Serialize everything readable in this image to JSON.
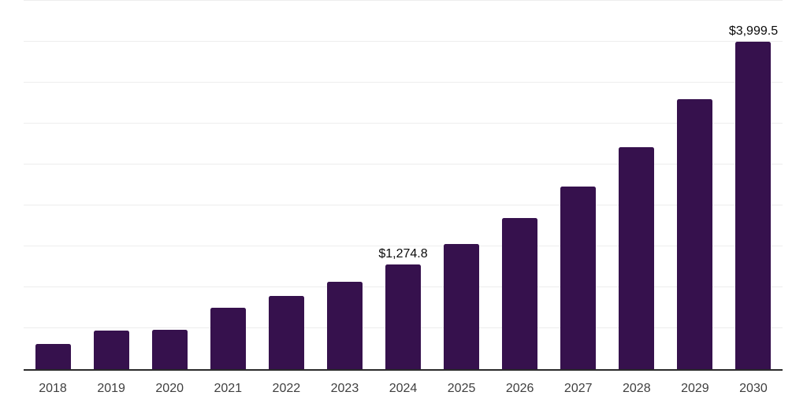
{
  "chart_data": {
    "type": "bar",
    "categories": [
      "2018",
      "2019",
      "2020",
      "2021",
      "2022",
      "2023",
      "2024",
      "2025",
      "2026",
      "2027",
      "2028",
      "2029",
      "2030"
    ],
    "values": [
      310,
      470,
      480,
      750,
      890,
      1065,
      1274.8,
      1530,
      1850,
      2230,
      2715,
      3295,
      3999.5
    ],
    "bar_labels": [
      "",
      "",
      "",
      "",
      "",
      "",
      "$1,274.8",
      "",
      "",
      "",
      "",
      "",
      "$3,999.5"
    ],
    "xlabel": "",
    "ylabel": "",
    "ylim": [
      0,
      4500
    ],
    "gridline_step": 500,
    "grid": true,
    "legend": false,
    "value_prefix": "$"
  },
  "colors": {
    "bar": "#36114D",
    "gridline": "#ededed",
    "axis": "#2a2a2a",
    "tick_label": "#3f3f3f",
    "value_label": "#0a0a0a",
    "background": "#ffffff"
  }
}
